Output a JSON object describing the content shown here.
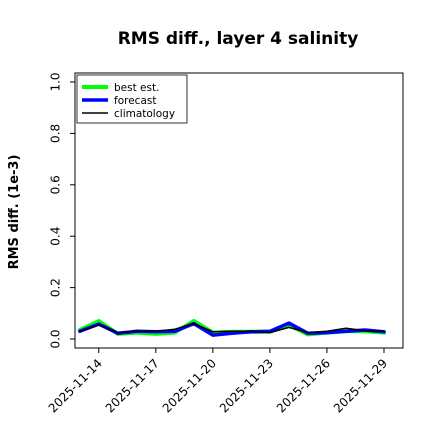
{
  "chart_data": {
    "type": "line",
    "title": "RMS diff., layer 4 salinity",
    "xlabel": "",
    "ylabel": "RMS diff. (1e-3)",
    "ylim": [
      0.0,
      1.0
    ],
    "yticks": [
      "0.0",
      "0.2",
      "0.4",
      "0.6",
      "0.8",
      "1.0"
    ],
    "xlim": [
      "2025-11-12T18:00",
      "2025-11-30"
    ],
    "x": [
      "2025-11-13",
      "2025-11-14",
      "2025-11-15",
      "2025-11-16",
      "2025-11-17",
      "2025-11-18",
      "2025-11-19",
      "2025-11-20",
      "2025-11-21",
      "2025-11-22",
      "2025-11-23",
      "2025-11-24",
      "2025-11-25",
      "2025-11-26",
      "2025-11-27",
      "2025-11-28",
      "2025-11-29"
    ],
    "xticks": [
      {
        "label": "2025-11-14",
        "date": "2025-11-14",
        "color": "#000000"
      },
      {
        "label": "2025-11-17",
        "date": "2025-11-17",
        "color": "#000000"
      },
      {
        "label": "2025-11-20",
        "date": "2025-11-20",
        "color": "#228B22"
      },
      {
        "label": "2025-11-23",
        "date": "2025-11-23",
        "color": "#000000"
      },
      {
        "label": "2025-11-26",
        "date": "2025-11-26",
        "color": "#000000"
      },
      {
        "label": "2025-11-29",
        "date": "2025-11-29",
        "color": "#000000"
      }
    ],
    "series": [
      {
        "name": "best est.",
        "color": "#00ff00",
        "values": [
          0.035,
          0.07,
          0.02,
          0.025,
          0.02,
          0.025,
          0.07,
          0.025,
          0.028,
          0.028,
          0.028,
          0.055,
          0.018,
          0.025,
          0.03,
          0.03,
          0.025
        ]
      },
      {
        "name": "forecast",
        "color": "#0000ff",
        "values": [
          0.03,
          0.058,
          0.022,
          0.03,
          0.028,
          0.03,
          0.06,
          0.015,
          0.022,
          0.028,
          0.03,
          0.062,
          0.022,
          0.025,
          0.03,
          0.035,
          0.028
        ]
      },
      {
        "name": "climatology",
        "color": "#000000",
        "values": [
          0.03,
          0.055,
          0.025,
          0.03,
          0.03,
          0.038,
          0.06,
          0.028,
          0.03,
          0.03,
          0.025,
          0.045,
          0.025,
          0.03,
          0.042,
          0.032,
          0.03
        ]
      }
    ],
    "legend_position": "top-left",
    "grid": false
  }
}
